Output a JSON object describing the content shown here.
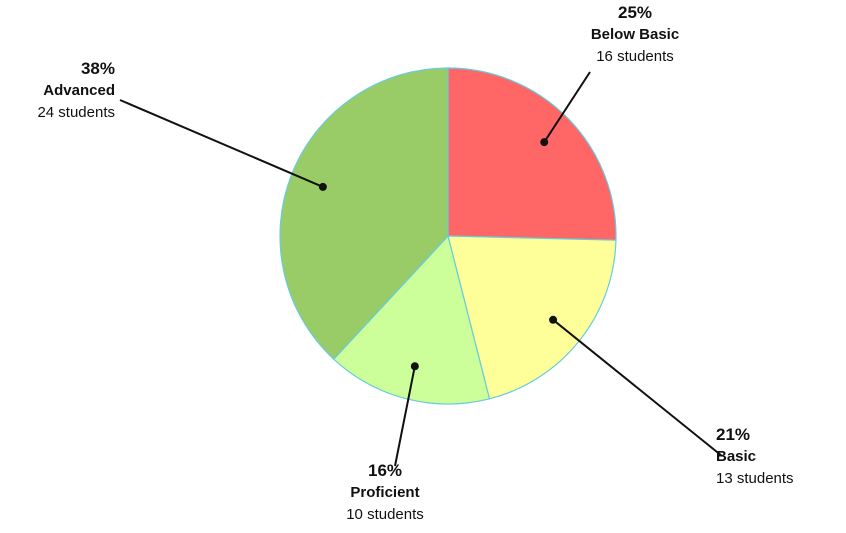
{
  "chart_data": {
    "type": "pie",
    "title": "",
    "start_angle_deg": 0,
    "direction": "clockwise",
    "slices": [
      {
        "key": "below_basic",
        "label": "Below Basic",
        "percent_label": "25%",
        "count_label": "16 students",
        "value": 16,
        "color": "#ff6666"
      },
      {
        "key": "basic",
        "label": "Basic",
        "percent_label": "21%",
        "count_label": "13 students",
        "value": 13,
        "color": "#ffff99"
      },
      {
        "key": "proficient",
        "label": "Proficient",
        "percent_label": "16%",
        "count_label": "10 students",
        "value": 10,
        "color": "#ccff99"
      },
      {
        "key": "advanced",
        "label": "Advanced",
        "percent_label": "38%",
        "count_label": "24 students",
        "value": 24,
        "color": "#99cc66"
      }
    ],
    "slice_border_color": "#66ccdd",
    "leader_line_color": "#111111"
  }
}
